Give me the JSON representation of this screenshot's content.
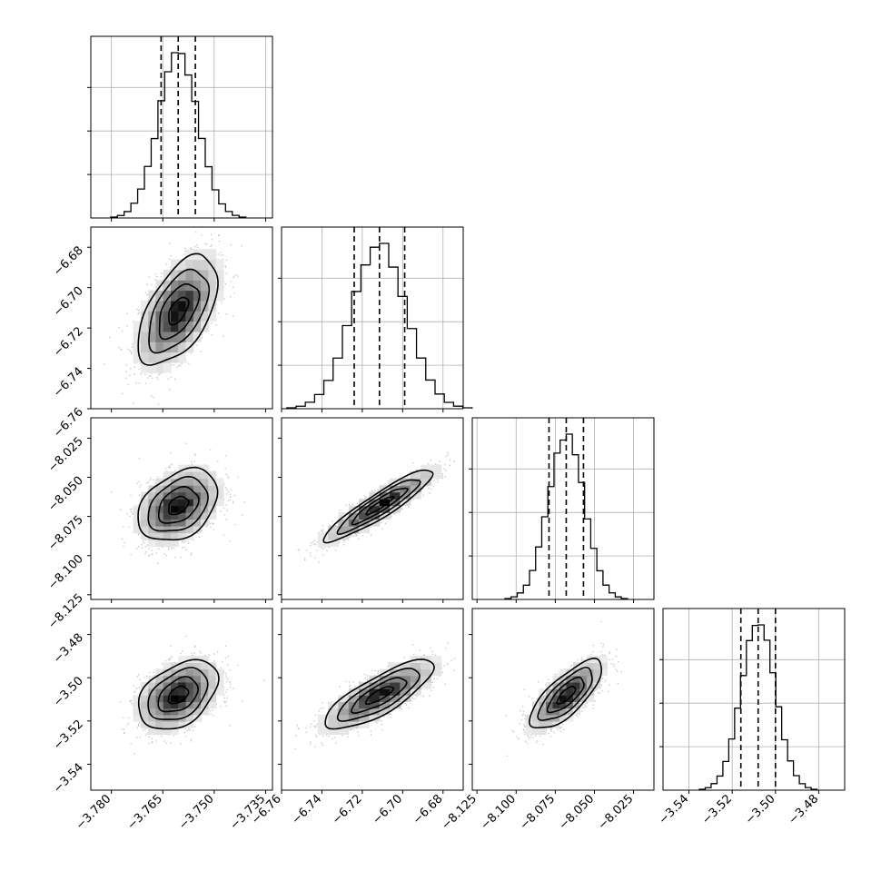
{
  "chart_data": {
    "type": "corner",
    "parameters": [
      {
        "index": 0,
        "median": -3.7605,
        "sigma": 0.0058,
        "range": [
          -3.786,
          -3.733
        ],
        "ticks": [
          -3.78,
          -3.765,
          -3.75,
          -3.735
        ],
        "tick_labels": [
          "−3.780",
          "−3.765",
          "−3.750",
          "−3.735"
        ],
        "quantiles": [
          -3.7655,
          -3.7605,
          -3.7555
        ]
      },
      {
        "index": 1,
        "median": -6.7115,
        "sigma": 0.0135,
        "range": [
          -6.76,
          -6.67
        ],
        "ticks": [
          -6.76,
          -6.74,
          -6.72,
          -6.7,
          -6.68
        ],
        "tick_labels": [
          "−6.76",
          "−6.74",
          "−6.72",
          "−6.70",
          "−6.68"
        ],
        "quantiles": [
          -6.724,
          -6.7115,
          -6.699
        ]
      },
      {
        "index": 2,
        "median": -8.068,
        "sigma": 0.0115,
        "range": [
          -8.128,
          -8.012
        ],
        "ticks": [
          -8.125,
          -8.1,
          -8.075,
          -8.05,
          -8.025
        ],
        "tick_labels": [
          "−8.125",
          "−8.100",
          "−8.075",
          "−8.050",
          "−8.025"
        ],
        "quantiles": [
          -8.079,
          -8.068,
          -8.057
        ]
      },
      {
        "index": 3,
        "median": -3.508,
        "sigma": 0.008,
        "range": [
          -3.552,
          -3.468
        ],
        "ticks": [
          -3.54,
          -3.52,
          -3.5,
          -3.48
        ],
        "tick_labels": [
          "−3.54",
          "−3.52",
          "−3.50",
          "−3.48"
        ],
        "quantiles": [
          -3.516,
          -3.508,
          -3.5
        ]
      }
    ],
    "y_ticks": [
      {
        "row": 1,
        "ticks": [
          -6.76,
          -6.74,
          -6.72,
          -6.7,
          -6.68
        ],
        "tick_labels": [
          "−6.76",
          "−6.74",
          "−6.72",
          "−6.70",
          "−6.68"
        ]
      },
      {
        "row": 2,
        "ticks": [
          -8.125,
          -8.1,
          -8.075,
          -8.05,
          -8.025
        ],
        "tick_labels": [
          "−8.125",
          "−8.100",
          "−8.075",
          "−8.050",
          "−8.025"
        ]
      },
      {
        "row": 3,
        "ticks": [
          -3.54,
          -3.52,
          -3.5,
          -3.48
        ],
        "tick_labels": [
          "−3.54",
          "−3.52",
          "−3.50",
          "−3.48"
        ]
      }
    ],
    "correlations": [
      {
        "i": 0,
        "j": 1,
        "rho": 0.55
      },
      {
        "i": 0,
        "j": 2,
        "rho": 0.35
      },
      {
        "i": 1,
        "j": 2,
        "rho": 0.92
      },
      {
        "i": 0,
        "j": 3,
        "rho": 0.4
      },
      {
        "i": 1,
        "j": 3,
        "rho": 0.8
      },
      {
        "i": 2,
        "j": 3,
        "rho": 0.75
      }
    ],
    "histogram_bins": 20,
    "contour_levels_sigma": [
      0.5,
      1.0,
      1.5,
      2.0
    ],
    "grid": true,
    "colors": {
      "points": "#8a8a8a",
      "lines": "#000000",
      "grid": "#b0b0b0"
    }
  }
}
